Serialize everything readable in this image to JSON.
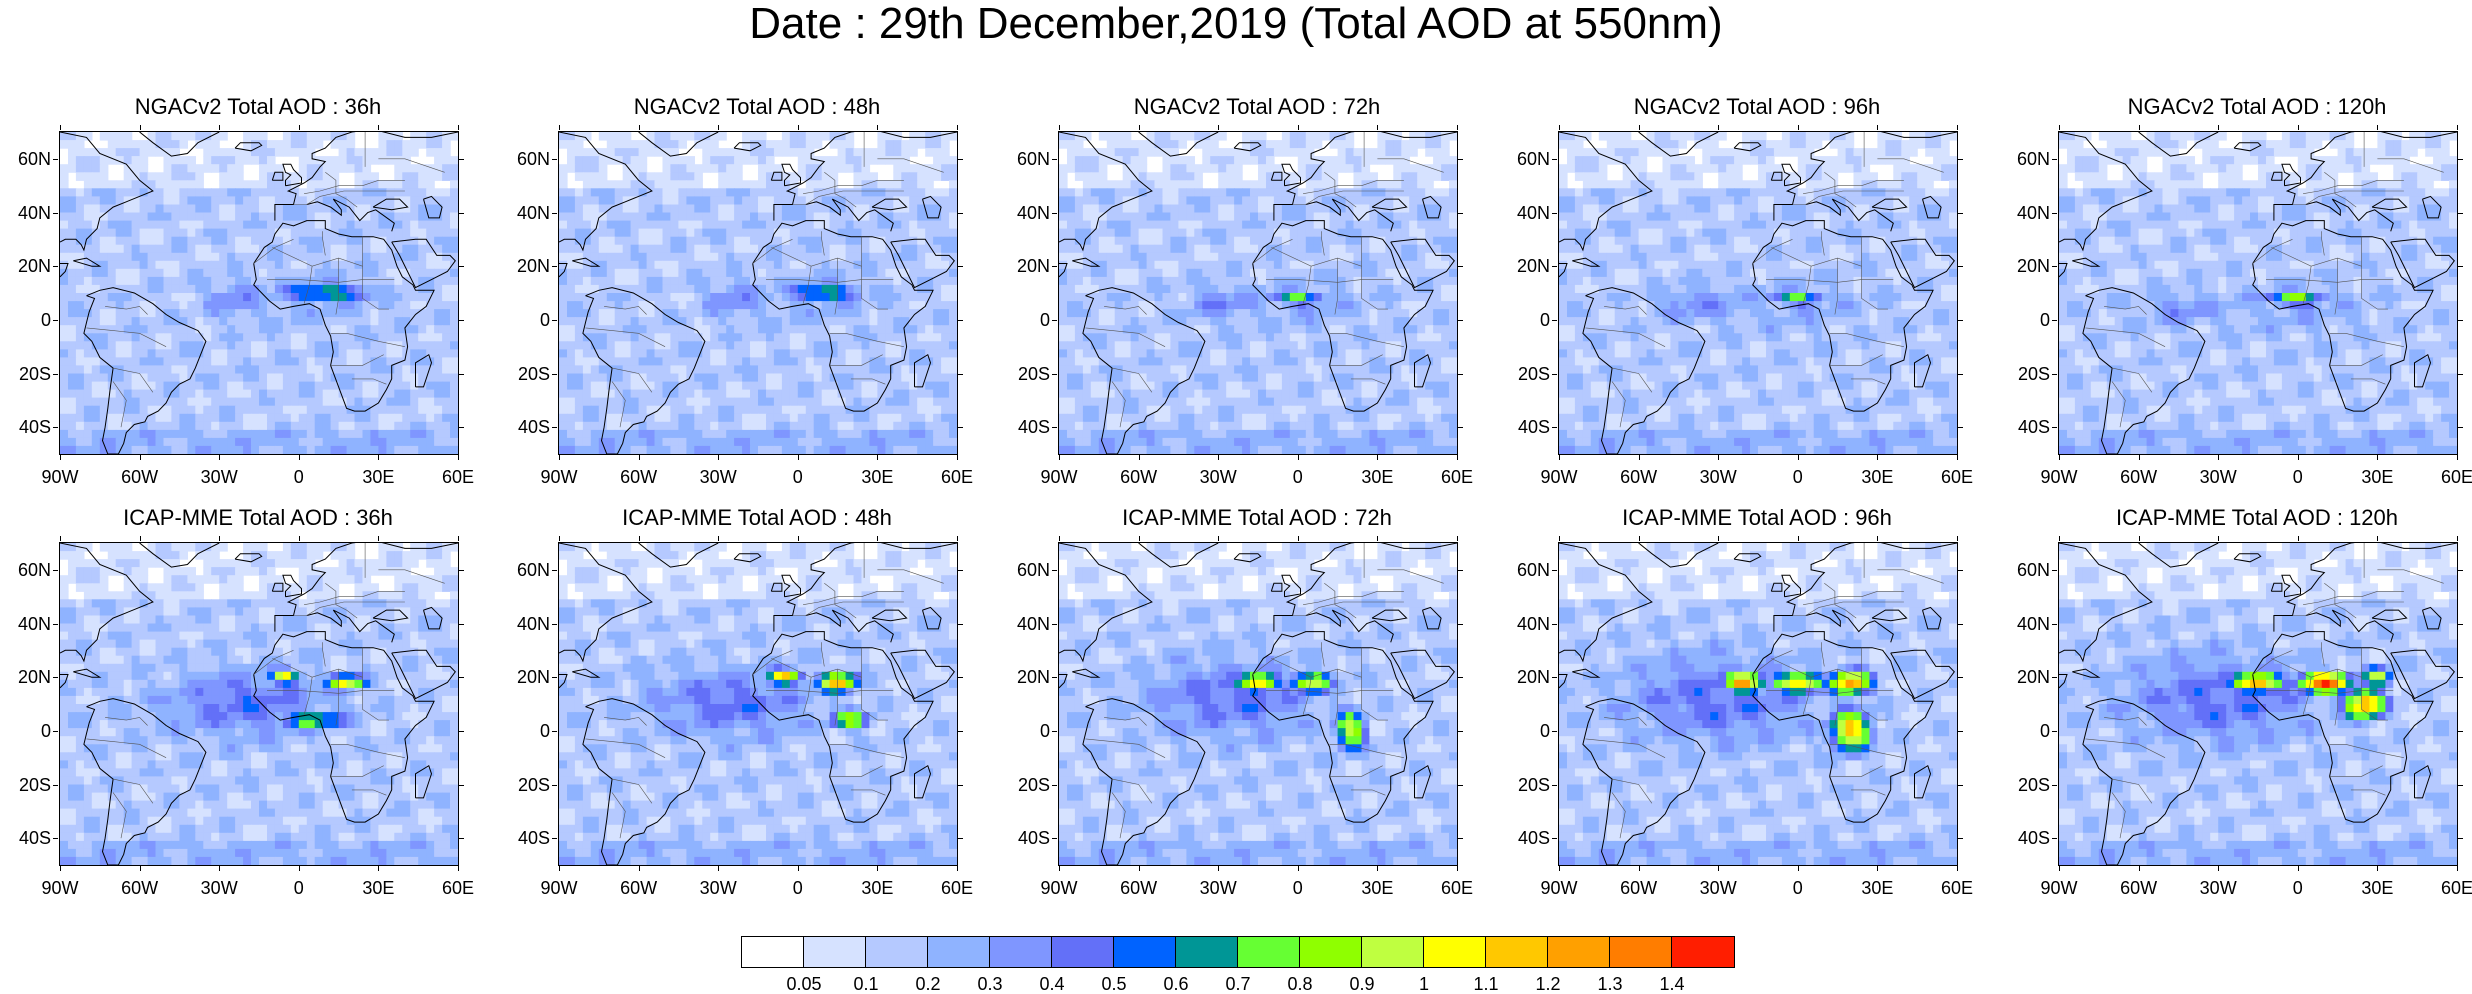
{
  "title": "Date : 29th December,2019 (Total AOD at 550nm)",
  "panels": [
    {
      "title": "NGACv2 Total AOD : 36h",
      "model": "NGACv2",
      "lead": "36h"
    },
    {
      "title": "NGACv2 Total AOD : 48h",
      "model": "NGACv2",
      "lead": "48h"
    },
    {
      "title": "NGACv2 Total AOD : 72h",
      "model": "NGACv2",
      "lead": "72h"
    },
    {
      "title": "NGACv2 Total AOD : 96h",
      "model": "NGACv2",
      "lead": "96h"
    },
    {
      "title": "NGACv2 Total AOD : 120h",
      "model": "NGACv2",
      "lead": "120h"
    },
    {
      "title": "ICAP-MME Total AOD : 36h",
      "model": "ICAP-MME",
      "lead": "36h"
    },
    {
      "title": "ICAP-MME Total AOD : 48h",
      "model": "ICAP-MME",
      "lead": "48h"
    },
    {
      "title": "ICAP-MME Total AOD : 72h",
      "model": "ICAP-MME",
      "lead": "72h"
    },
    {
      "title": "ICAP-MME Total AOD : 96h",
      "model": "ICAP-MME",
      "lead": "96h"
    },
    {
      "title": "ICAP-MME Total AOD : 120h",
      "model": "ICAP-MME",
      "lead": "120h"
    }
  ],
  "map": {
    "lat_labels": [
      "60N",
      "40N",
      "20N",
      "0",
      "20S",
      "40S"
    ],
    "lon_labels": [
      "90W",
      "60W",
      "30W",
      "0",
      "30E",
      "60E"
    ],
    "lat_range": [
      -50,
      70
    ],
    "lon_range": [
      -90,
      60
    ]
  },
  "colorbar": {
    "labels": [
      "0.05",
      "0.1",
      "0.2",
      "0.3",
      "0.4",
      "0.5",
      "0.6",
      "0.7",
      "0.8",
      "0.9",
      "1",
      "1.1",
      "1.2",
      "1.3",
      "1.4"
    ],
    "colors": [
      "#ffffff",
      "#d6e2ff",
      "#b5c9ff",
      "#8fb3ff",
      "#7f96ff",
      "#6370f8",
      "#0063ff",
      "#009696",
      "#66ff33",
      "#8fff00",
      "#bfff40",
      "#ffff00",
      "#ffc800",
      "#ffa000",
      "#ff7d00",
      "#ff1e00"
    ]
  },
  "fields": {
    "ngac": [
      {
        "base": 2,
        "plume": [
          [
            -25,
            8,
            2,
            10,
            7
          ],
          [
            10,
            8,
            1,
            25,
            10
          ]
        ],
        "hot": [
          [
            10,
            10,
            8,
            18,
            4
          ]
        ],
        "peak": 8
      },
      {
        "base": 2,
        "plume": [
          [
            -25,
            8,
            2,
            10,
            7
          ],
          [
            10,
            8,
            1,
            25,
            10
          ]
        ],
        "hot": [
          [
            10,
            10,
            8,
            14,
            4
          ]
        ],
        "peak": 8
      },
      {
        "base": 2,
        "plume": [
          [
            -30,
            6,
            2,
            12,
            7
          ],
          [
            5,
            6,
            1,
            25,
            10
          ]
        ],
        "hot": [
          [
            0,
            8,
            8,
            12,
            3
          ]
        ],
        "peak": 8
      },
      {
        "base": 2,
        "plume": [
          [
            -40,
            6,
            2,
            14,
            6
          ],
          [
            0,
            5,
            1,
            30,
            10
          ]
        ],
        "hot": [
          [
            0,
            8,
            8,
            12,
            3
          ]
        ],
        "peak": 8
      },
      {
        "base": 2,
        "plume": [
          [
            -45,
            4,
            2,
            14,
            6
          ],
          [
            0,
            4,
            1,
            30,
            10
          ]
        ],
        "hot": [
          [
            0,
            8,
            9,
            12,
            3
          ]
        ],
        "peak": 9
      }
    ],
    "icap": [
      {
        "base": 2,
        "plume": [
          [
            -20,
            10,
            3,
            30,
            12
          ]
        ],
        "hot": [
          [
            -5,
            20,
            11,
            6,
            3
          ],
          [
            18,
            18,
            11,
            8,
            3
          ],
          [
            5,
            4,
            8,
            15,
            4
          ]
        ],
        "peak": 11
      },
      {
        "base": 2,
        "plume": [
          [
            -25,
            10,
            3,
            30,
            12
          ]
        ],
        "hot": [
          [
            -5,
            20,
            12,
            7,
            3
          ],
          [
            15,
            18,
            12,
            8,
            4
          ],
          [
            20,
            4,
            9,
            8,
            4
          ]
        ],
        "peak": 12
      },
      {
        "base": 2,
        "plume": [
          [
            -25,
            12,
            3,
            30,
            14
          ]
        ],
        "hot": [
          [
            -15,
            18,
            12,
            8,
            4
          ],
          [
            5,
            18,
            11,
            8,
            4
          ],
          [
            20,
            0,
            10,
            6,
            8
          ]
        ],
        "peak": 12
      },
      {
        "base": 2,
        "plume": [
          [
            -30,
            12,
            3,
            35,
            16
          ]
        ],
        "hot": [
          [
            -20,
            18,
            13,
            8,
            4
          ],
          [
            0,
            18,
            12,
            10,
            4
          ],
          [
            20,
            18,
            13,
            8,
            5
          ],
          [
            20,
            0,
            12,
            8,
            8
          ]
        ],
        "peak": 13
      },
      {
        "base": 2,
        "plume": [
          [
            -30,
            12,
            3,
            35,
            16
          ]
        ],
        "hot": [
          [
            -15,
            18,
            13,
            10,
            4
          ],
          [
            10,
            18,
            15,
            10,
            4
          ],
          [
            25,
            10,
            13,
            8,
            6
          ],
          [
            30,
            20,
            10,
            6,
            4
          ]
        ],
        "peak": 15
      }
    ]
  }
}
